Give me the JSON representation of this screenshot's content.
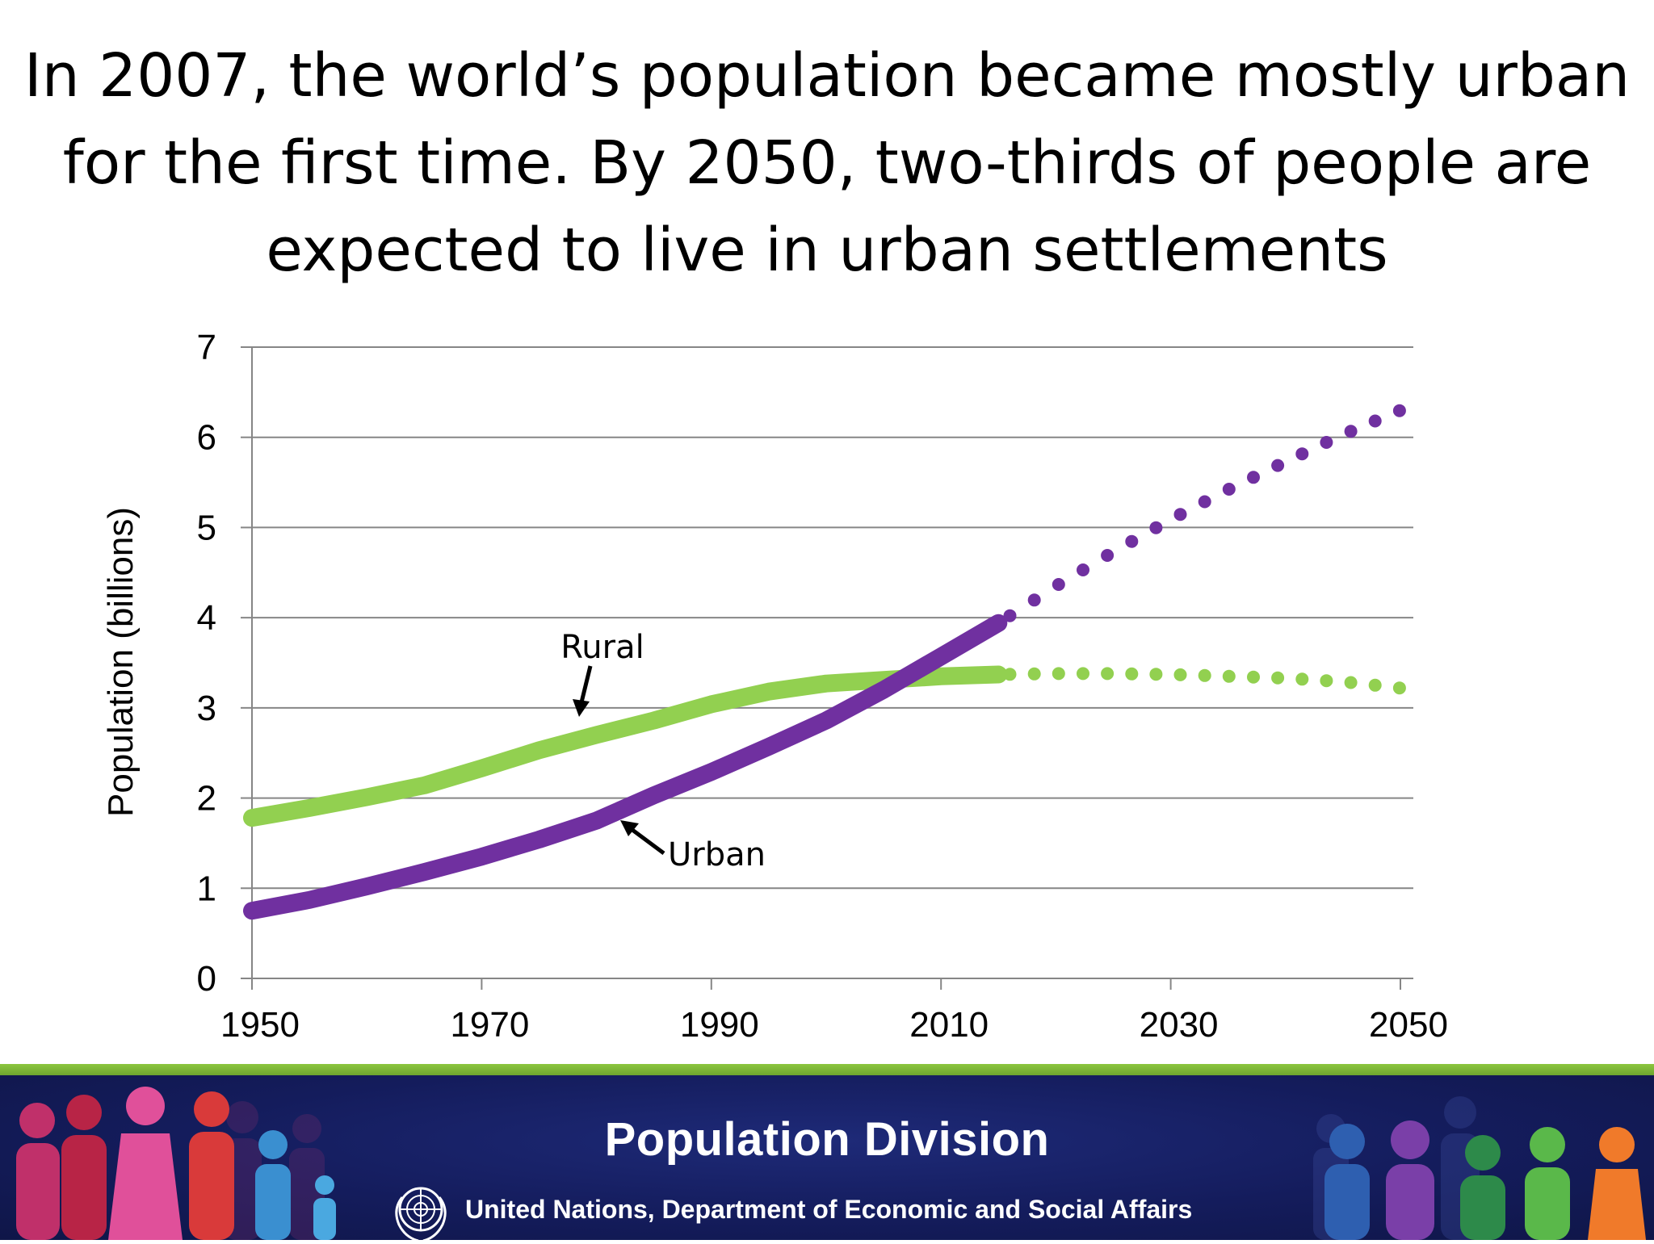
{
  "slide": {
    "title_lines": [
      "In 2007, the world’s population became mostly urban",
      "for the first time. By 2050, two-thirds of people are",
      "expected to live in urban settlements"
    ]
  },
  "chart_data": {
    "type": "line",
    "title": "",
    "xlabel": "",
    "ylabel": "Population (billions)",
    "xlim": [
      1950,
      2050
    ],
    "ylim": [
      0,
      7
    ],
    "xticks": [
      1950,
      1970,
      1990,
      2010,
      2030,
      2050
    ],
    "yticks": [
      0,
      1,
      2,
      3,
      4,
      5,
      6,
      7
    ],
    "grid": "horizontal",
    "legend": "none",
    "series": [
      {
        "name": "Rural",
        "color": "#92d050",
        "estimated": {
          "x": [
            1950,
            1955,
            1960,
            1965,
            1970,
            1975,
            1980,
            1985,
            1990,
            1995,
            2000,
            2005,
            2010,
            2015
          ],
          "y": [
            1.78,
            1.89,
            2.01,
            2.14,
            2.33,
            2.53,
            2.7,
            2.86,
            3.04,
            3.18,
            3.27,
            3.31,
            3.35,
            3.37
          ]
        },
        "projected": {
          "x": [
            2015,
            2020,
            2025,
            2030,
            2035,
            2040,
            2045,
            2050
          ],
          "y": [
            3.37,
            3.38,
            3.38,
            3.37,
            3.35,
            3.33,
            3.29,
            3.22
          ]
        }
      },
      {
        "name": "Urban",
        "color": "#7030a0",
        "estimated": {
          "x": [
            1950,
            1955,
            1960,
            1965,
            1970,
            1975,
            1980,
            1985,
            1990,
            1995,
            2000,
            2005,
            2010,
            2015
          ],
          "y": [
            0.75,
            0.87,
            1.02,
            1.18,
            1.35,
            1.54,
            1.75,
            2.03,
            2.29,
            2.57,
            2.86,
            3.2,
            3.57,
            3.94
          ]
        },
        "projected": {
          "x": [
            2015,
            2020,
            2025,
            2030,
            2035,
            2040,
            2045,
            2050
          ],
          "y": [
            3.94,
            4.35,
            4.73,
            5.09,
            5.42,
            5.73,
            6.03,
            6.3
          ]
        }
      }
    ],
    "annotations": [
      {
        "text": "Rural",
        "series": "Rural",
        "point_x": 1978,
        "point_y": 2.9
      },
      {
        "text": "Urban",
        "series": "Urban",
        "point_x": 1981,
        "point_y": 1.8
      }
    ]
  },
  "footer": {
    "division_name": "Population Division",
    "organization": "United Nations, Department of Economic and Social Affairs",
    "stripe_color": "#8cc63f",
    "band_color": "#141c5c"
  }
}
